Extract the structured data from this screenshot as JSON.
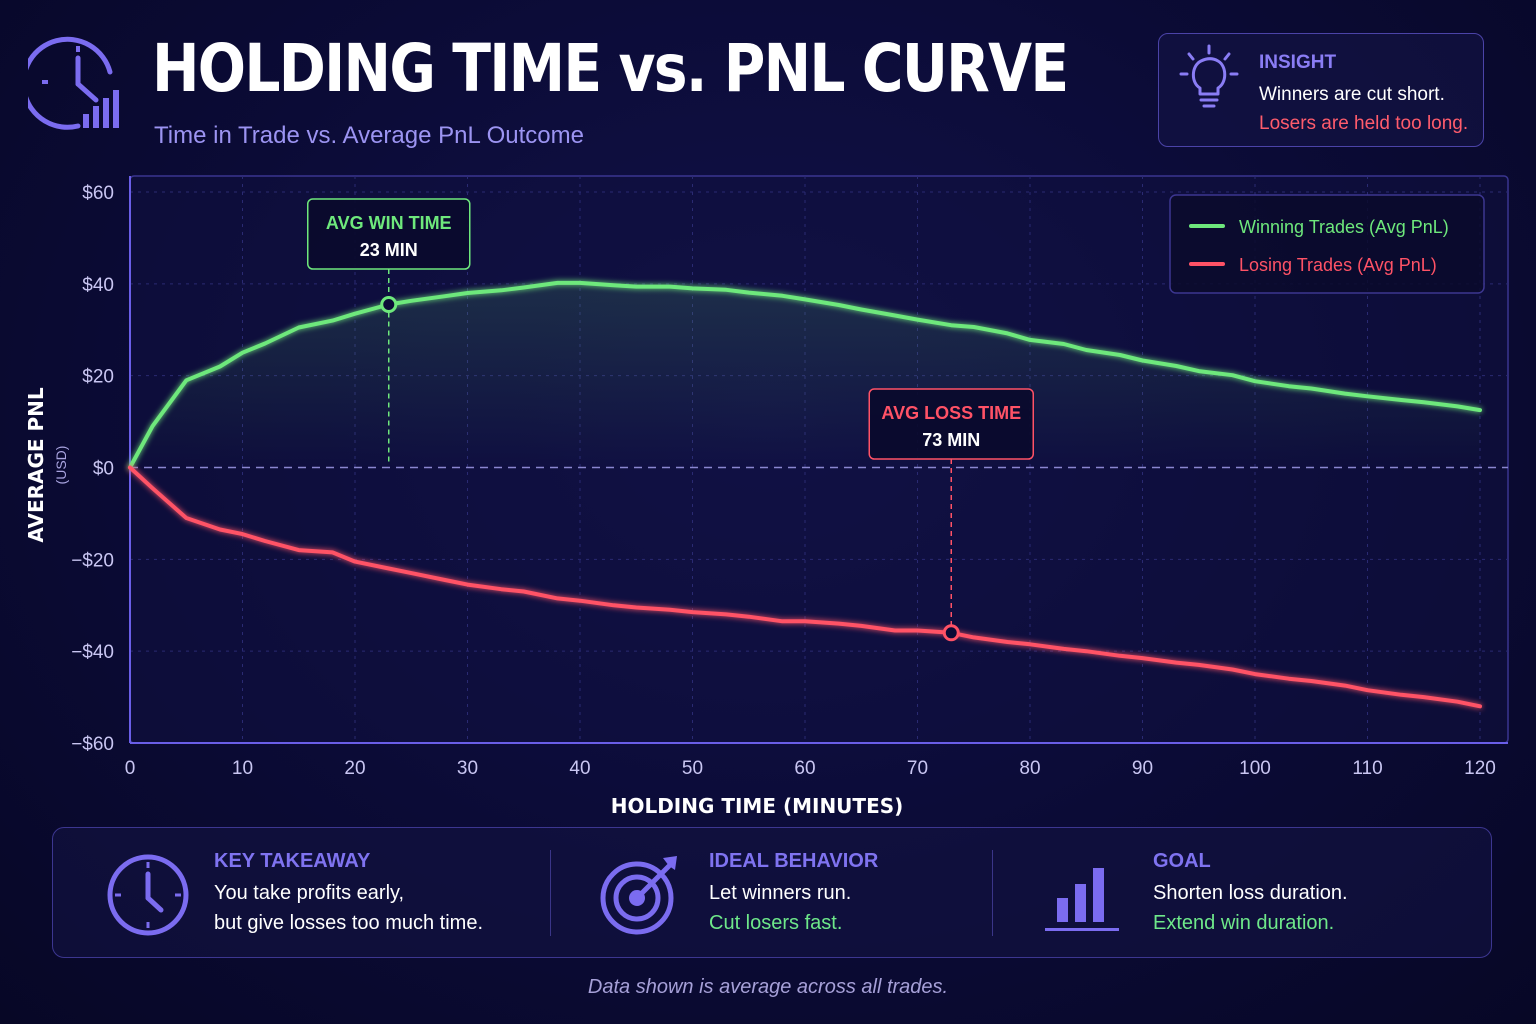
{
  "header": {
    "title": "HOLDING TIME vs. PNL CURVE",
    "subtitle": "Time in Trade vs. Average PnL Outcome"
  },
  "insight": {
    "heading": "INSIGHT",
    "line1": "Winners are cut short.",
    "line2": "Losers are held too long."
  },
  "chart_data": {
    "type": "line",
    "xlabel": "HOLDING TIME (MINUTES)",
    "ylabel": "AVERAGE PNL",
    "ylabel_unit": "(USD)",
    "xlim": [
      0,
      120
    ],
    "ylim": [
      -60,
      60
    ],
    "x_ticks": [
      0,
      10,
      20,
      30,
      40,
      50,
      60,
      70,
      80,
      90,
      100,
      110,
      120
    ],
    "y_ticks": [
      60,
      40,
      20,
      0,
      -20,
      -40,
      -60
    ],
    "y_tick_labels": [
      "$60",
      "$40",
      "$20",
      "$0",
      "−$20",
      "−$40",
      "−$60"
    ],
    "grid": true,
    "legend_position": "top-right",
    "x": [
      0,
      2,
      5,
      8,
      10,
      12,
      15,
      18,
      20,
      23,
      25,
      28,
      30,
      33,
      35,
      38,
      40,
      43,
      45,
      48,
      50,
      53,
      55,
      58,
      60,
      63,
      65,
      68,
      70,
      73,
      75,
      78,
      80,
      83,
      85,
      88,
      90,
      93,
      95,
      98,
      100,
      103,
      105,
      108,
      110,
      113,
      115,
      118,
      120
    ],
    "series": [
      {
        "name": "Winning Trades (Avg PnL)",
        "color": "#6ee87c",
        "values": [
          0,
          9,
          19,
          22,
          25,
          27,
          30.5,
          32,
          33.5,
          35.5,
          36.3,
          37.3,
          38.0,
          38.6,
          39.2,
          40.2,
          40.2,
          39.7,
          39.4,
          39.4,
          39.0,
          38.7,
          38.1,
          37.4,
          36.6,
          35.4,
          34.4,
          33.1,
          32.2,
          31.0,
          30.6,
          29.2,
          27.8,
          26.9,
          25.6,
          24.5,
          23.3,
          22.1,
          21.0,
          20.1,
          18.8,
          17.7,
          17.2,
          16.1,
          15.5,
          14.7,
          14.2,
          13.3,
          12.5
        ]
      },
      {
        "name": "Losing Trades (Avg PnL)",
        "color": "#ff5266",
        "values": [
          0,
          -4.5,
          -11,
          -13.5,
          -14.5,
          -16,
          -18,
          -18.5,
          -20.5,
          -22,
          -23,
          -24.5,
          -25.5,
          -26.5,
          -27,
          -28.5,
          -29,
          -30,
          -30.5,
          -31,
          -31.5,
          -32,
          -32.5,
          -33.5,
          -33.5,
          -34,
          -34.5,
          -35.5,
          -35.5,
          -36,
          -37,
          -38,
          -38.5,
          -39.5,
          -40,
          -41,
          -41.5,
          -42.5,
          -43,
          -44,
          -45,
          -46,
          -46.5,
          -47.5,
          -48.5,
          -49.5,
          -50,
          -51,
          -52
        ]
      }
    ],
    "annotations": [
      {
        "label": "AVG WIN TIME",
        "value_label": "23 MIN",
        "x": 23,
        "y": 35.5,
        "series": 0,
        "color": "#6ee87c"
      },
      {
        "label": "AVG LOSS TIME",
        "value_label": "73 MIN",
        "x": 73,
        "y": -36,
        "series": 1,
        "color": "#ff5266"
      }
    ]
  },
  "takeaways": [
    {
      "icon": "clock-icon",
      "heading": "KEY TAKEAWAY",
      "line1": "You take profits early,",
      "line2": "but give losses too much time.",
      "line2_accent": false
    },
    {
      "icon": "target-icon",
      "heading": "IDEAL BEHAVIOR",
      "line1": "Let winners run.",
      "line2": "Cut losers fast.",
      "line2_accent": true
    },
    {
      "icon": "bar-chart-icon",
      "heading": "GOAL",
      "line1": "Shorten loss duration.",
      "line2": "Extend win duration.",
      "line2_accent": true
    }
  ],
  "footnote": "Data shown is average across all trades.",
  "colors": {
    "accent": "#7f73f0",
    "win": "#6ee87c",
    "loss": "#ff5266",
    "background": "#0b0b36"
  }
}
